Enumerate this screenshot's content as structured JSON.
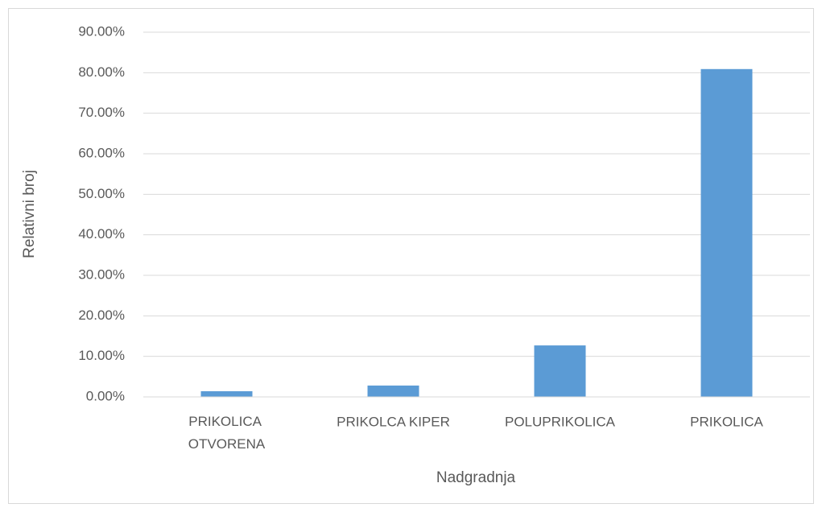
{
  "chart_data": {
    "type": "bar",
    "x_label": "Nadgradnja",
    "y_label": "Relativni broj",
    "categories": [
      "PRIKOLICA OTVORENA",
      "PRIKOLCA KIPER",
      "POLUPRIKOLICA",
      "PRIKOLICA"
    ],
    "values": [
      1.4,
      2.8,
      12.7,
      80.9
    ],
    "color": "#5b9bd5",
    "ylim": [
      0,
      90
    ],
    "yticks": [
      {
        "value": 0,
        "label": "0.00%"
      },
      {
        "value": 10,
        "label": "10.00%"
      },
      {
        "value": 20,
        "label": "20.00%"
      },
      {
        "value": 30,
        "label": "30.00%"
      },
      {
        "value": 40,
        "label": "40.00%"
      },
      {
        "value": 50,
        "label": "50.00%"
      },
      {
        "value": 60,
        "label": "60.00%"
      },
      {
        "value": 70,
        "label": "70.00%"
      },
      {
        "value": 80,
        "label": "80.00%"
      },
      {
        "value": 90,
        "label": "90.00%"
      }
    ],
    "grid": true
  }
}
